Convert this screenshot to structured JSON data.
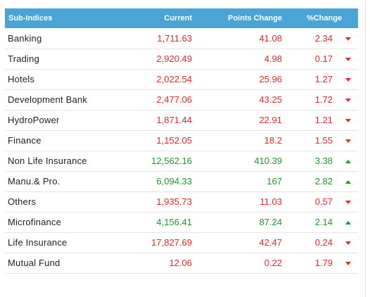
{
  "table": {
    "headers": {
      "name": "Sub-Indices",
      "current": "Current",
      "points_change": "Points Change",
      "pct_change": "%Change"
    },
    "rows": [
      {
        "name": "Banking",
        "current": "1,711.63",
        "points": "41.08",
        "pct": "2.34",
        "trend": "down"
      },
      {
        "name": "Trading",
        "current": "2,920.49",
        "points": "4.98",
        "pct": "0.17",
        "trend": "down"
      },
      {
        "name": "Hotels",
        "current": "2,022.54",
        "points": "25.96",
        "pct": "1.27",
        "trend": "down"
      },
      {
        "name": "Development Bank",
        "current": "2,477.06",
        "points": "43.25",
        "pct": "1.72",
        "trend": "down"
      },
      {
        "name": "HydroPower",
        "current": "1,871.44",
        "points": "22.91",
        "pct": "1.21",
        "trend": "down"
      },
      {
        "name": "Finance",
        "current": "1,152.05",
        "points": "18.2",
        "pct": "1.55",
        "trend": "down"
      },
      {
        "name": "Non Life Insurance",
        "current": "12,562.16",
        "points": "410.39",
        "pct": "3.38",
        "trend": "up"
      },
      {
        "name": "Manu.& Pro.",
        "current": "6,094.33",
        "points": "167",
        "pct": "2.82",
        "trend": "up"
      },
      {
        "name": "Others",
        "current": "1,935.73",
        "points": "11.03",
        "pct": "0.57",
        "trend": "down"
      },
      {
        "name": "Microfinance",
        "current": "4,156.41",
        "points": "87.24",
        "pct": "2.14",
        "trend": "up"
      },
      {
        "name": "Life Insurance",
        "current": "17,827.69",
        "points": "42.47",
        "pct": "0.24",
        "trend": "down"
      },
      {
        "name": "Mutual Fund",
        "current": "12.06",
        "points": "0.22",
        "pct": "1.79",
        "trend": "down"
      }
    ]
  },
  "colors": {
    "header_bg": "#4aa5d6",
    "down": "#e8272b",
    "up": "#1b9a2a"
  },
  "icons": {
    "down": "triangle-down-icon",
    "up": "triangle-up-icon"
  }
}
